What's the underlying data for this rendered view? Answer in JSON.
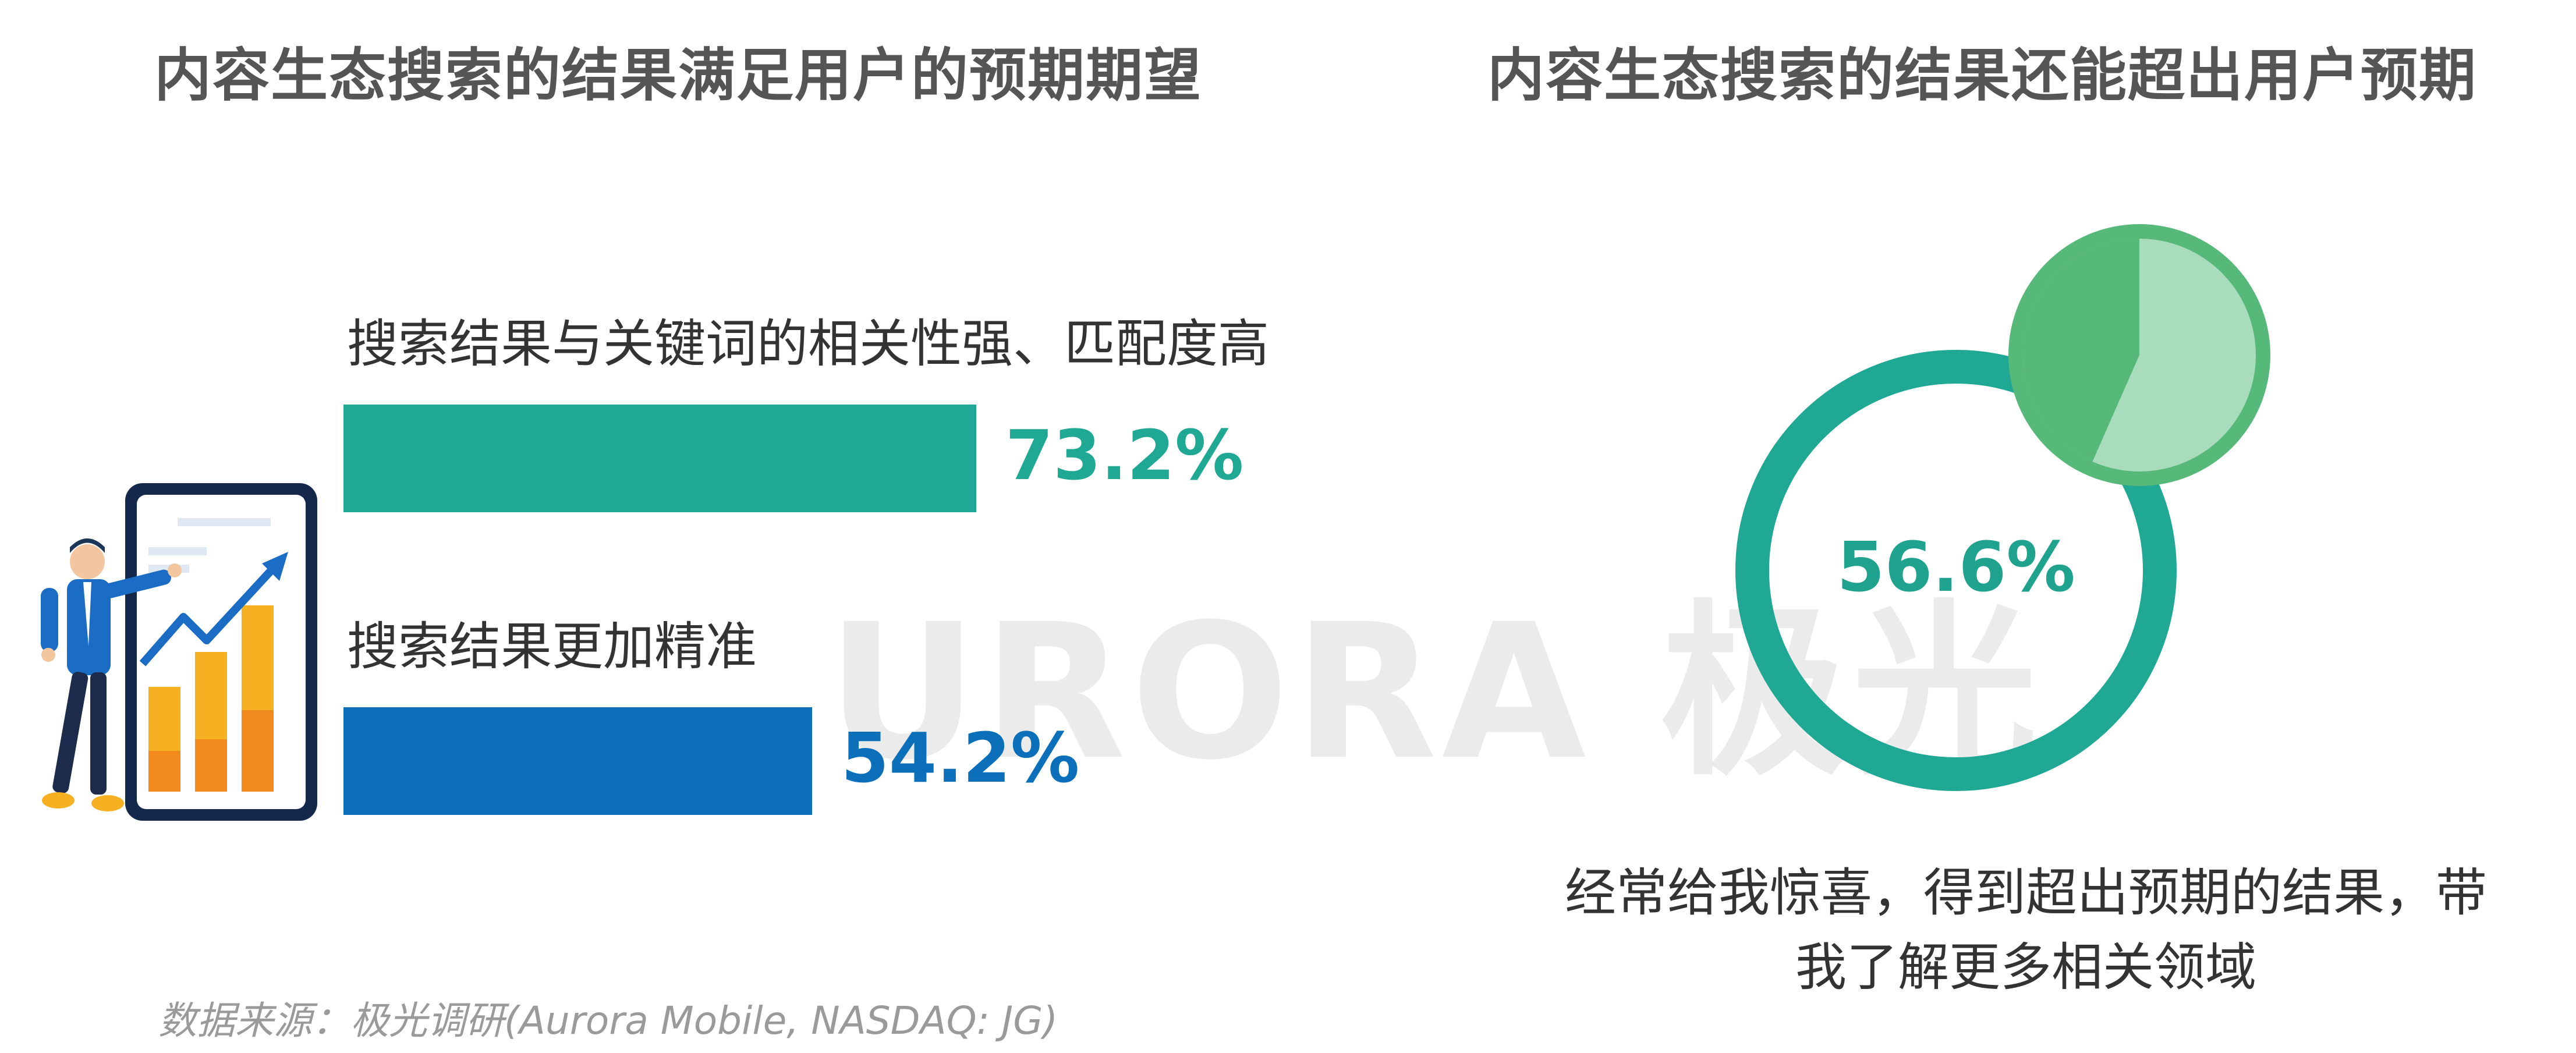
{
  "left_panel": {
    "title": "内容生态搜索的结果满足用户的预期期望"
  },
  "right_panel": {
    "title": "内容生态搜索的结果还能超出用户预期",
    "donut_label": "56.6%",
    "caption_line1": "经常给我惊喜，得到超出预期的结果，带",
    "caption_line2": "我了解更多相关领域"
  },
  "watermark": {
    "text": "URORA 极光"
  },
  "source": "数据来源：极光调研(Aurora Mobile, NASDAQ: JG)",
  "colors": {
    "teal": "#1fa894",
    "blue": "#0b6fba",
    "green_dark": "#56b97a",
    "green_light": "#a9dcbc",
    "title_gray": "#555555"
  },
  "chart_data": [
    {
      "type": "bar",
      "orientation": "horizontal",
      "categories": [
        "搜索结果与关键词的相关性强、匹配度高",
        "搜索结果更加精准"
      ],
      "values": [
        73.2,
        54.2
      ],
      "value_labels": [
        "73.2%",
        "54.2%"
      ],
      "colors": [
        "#1fa894",
        "#0b6fba"
      ],
      "xlim": [
        0,
        100
      ]
    },
    {
      "type": "pie",
      "categories": [
        "经常给我惊喜，得到超出预期的结果，带我了解更多相关领域"
      ],
      "values": [
        56.6
      ],
      "value_labels": [
        "56.6%"
      ]
    }
  ]
}
